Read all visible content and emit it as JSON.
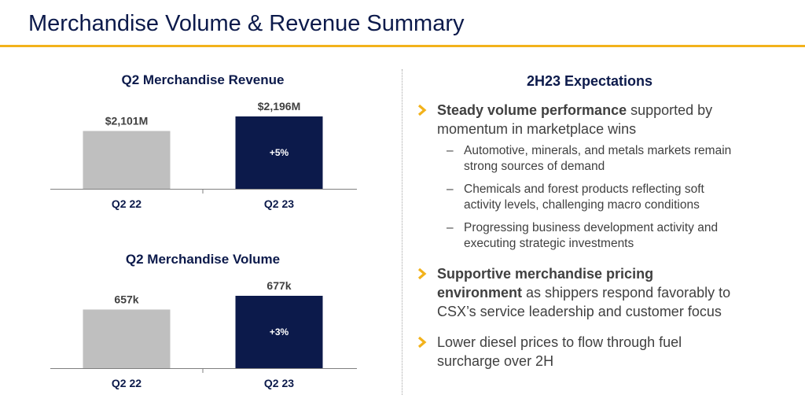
{
  "page": {
    "title": "Merchandise Volume & Revenue Summary",
    "accent_color": "#f2b21b",
    "navy_color": "#0c1a4b",
    "gray_color": "#bfbfbf"
  },
  "chart_data": [
    {
      "type": "bar",
      "title": "Q2 Merchandise Revenue",
      "categories": [
        "Q2 22",
        "Q2 23"
      ],
      "values": [
        2101,
        2196
      ],
      "data_labels": [
        "$2,101M",
        "$2,196M"
      ],
      "bar_colors": [
        "#bfbfbf",
        "#0c1a4b"
      ],
      "change_label": "+5%",
      "xlabel": "",
      "ylabel": "",
      "grid": false
    },
    {
      "type": "bar",
      "title": "Q2 Merchandise Volume",
      "categories": [
        "Q2 22",
        "Q2 23"
      ],
      "values": [
        657,
        677
      ],
      "data_labels": [
        "657k",
        "677k"
      ],
      "bar_colors": [
        "#bfbfbf",
        "#0c1a4b"
      ],
      "change_label": "+3%",
      "xlabel": "",
      "ylabel": "",
      "grid": false
    }
  ],
  "expectations": {
    "heading": "2H23 Expectations",
    "bullet1": {
      "bold": "Steady volume performance",
      "rest_line1": " supported by",
      "line2": "momentum in marketplace wins"
    },
    "subs": [
      {
        "line1": "Automotive, minerals, and metals markets remain",
        "line2": "strong sources of demand"
      },
      {
        "line1": "Chemicals and forest products reflecting soft",
        "line2": "activity levels, challenging macro conditions"
      },
      {
        "line1": "Progressing business development activity and",
        "line2": "executing strategic investments"
      }
    ],
    "dash": "–",
    "bullet2": {
      "bold_line1": "Supportive merchandise pricing",
      "bold_line2": "environment",
      "rest_line2": " as shippers respond favorably to",
      "line3": "CSX’s service leadership and customer focus"
    },
    "bullet3": {
      "line1": "Lower diesel prices to flow through fuel",
      "line2": "surcharge over 2H"
    }
  }
}
